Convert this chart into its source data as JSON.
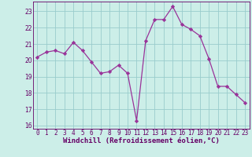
{
  "x": [
    0,
    1,
    2,
    3,
    4,
    5,
    6,
    7,
    8,
    9,
    10,
    11,
    12,
    13,
    14,
    15,
    16,
    17,
    18,
    19,
    20,
    21,
    22,
    23
  ],
  "y": [
    20.2,
    20.5,
    20.6,
    20.4,
    21.1,
    20.6,
    19.9,
    19.2,
    19.3,
    19.7,
    19.2,
    16.3,
    21.2,
    22.5,
    22.5,
    23.3,
    22.2,
    21.9,
    21.5,
    20.1,
    18.4,
    18.4,
    17.9,
    17.4
  ],
  "line_color": "#993399",
  "marker": "D",
  "marker_size": 2.2,
  "bg_color": "#cceee8",
  "grid_color": "#99cccc",
  "ylim": [
    15.8,
    23.6
  ],
  "yticks": [
    16,
    17,
    18,
    19,
    20,
    21,
    22,
    23
  ],
  "xticks": [
    0,
    1,
    2,
    3,
    4,
    5,
    6,
    7,
    8,
    9,
    10,
    11,
    12,
    13,
    14,
    15,
    16,
    17,
    18,
    19,
    20,
    21,
    22,
    23
  ],
  "xlabel": "Windchill (Refroidissement éolien,°C)",
  "xlabel_fontsize": 6.5,
  "tick_fontsize": 5.5,
  "tick_color": "#660066",
  "axis_label_color": "#660066",
  "spine_color": "#660066"
}
